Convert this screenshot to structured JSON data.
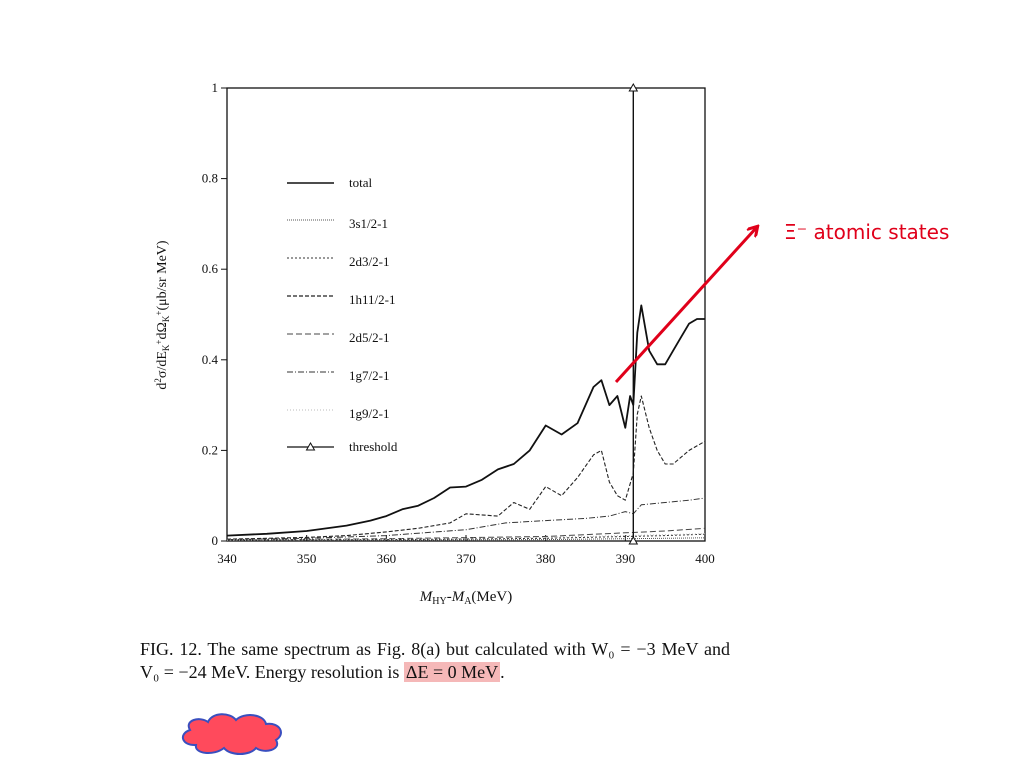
{
  "chart_data": {
    "type": "line",
    "xlabel": "M_HY-M_A(MeV)",
    "ylabel": "d²σ/dE_K+dΩ_K+(μb/sr MeV)",
    "xlim": [
      340,
      400
    ],
    "ylim": [
      0,
      1
    ],
    "x_ticks": [
      "340",
      "350",
      "360",
      "370",
      "380",
      "390",
      "400"
    ],
    "y_ticks": [
      "0",
      "0.2",
      "0.4",
      "0.6",
      "0.8",
      "1"
    ],
    "grid": false,
    "legend_position": "top-left",
    "series": [
      {
        "name": "total",
        "style": "solid",
        "x": [
          340,
          345,
          350,
          355,
          358,
          360,
          362,
          364,
          366,
          368,
          370,
          372,
          374,
          376,
          378,
          380,
          382,
          384,
          386,
          387,
          388,
          389,
          390,
          390.6,
          391,
          391.5,
          392,
          393,
          394,
          395,
          396,
          397,
          398,
          399,
          400
        ],
        "y": [
          0.012,
          0.016,
          0.022,
          0.034,
          0.045,
          0.055,
          0.07,
          0.078,
          0.095,
          0.118,
          0.12,
          0.135,
          0.158,
          0.17,
          0.2,
          0.255,
          0.235,
          0.26,
          0.34,
          0.355,
          0.3,
          0.32,
          0.25,
          0.32,
          0.3,
          0.46,
          0.52,
          0.42,
          0.39,
          0.39,
          0.42,
          0.45,
          0.48,
          0.49,
          0.49
        ]
      },
      {
        "name": "3s1/2-1",
        "style": "dotted",
        "x": [
          340,
          360,
          380,
          390,
          395,
          400
        ],
        "y": [
          0.001,
          0.002,
          0.003,
          0.005,
          0.006,
          0.007
        ]
      },
      {
        "name": "2d3/2-1",
        "style": "dotted-fine",
        "x": [
          340,
          360,
          380,
          390,
          395,
          400
        ],
        "y": [
          0.002,
          0.003,
          0.006,
          0.01,
          0.012,
          0.015
        ]
      },
      {
        "name": "1h11/2-1",
        "style": "dashed",
        "x": [
          340,
          345,
          350,
          355,
          360,
          364,
          368,
          370,
          374,
          376,
          378,
          380,
          382,
          384,
          386,
          387,
          388,
          389,
          390,
          391,
          391.5,
          392,
          393,
          394,
          395,
          396,
          398,
          400
        ],
        "y": [
          0.004,
          0.006,
          0.008,
          0.012,
          0.02,
          0.028,
          0.04,
          0.06,
          0.055,
          0.085,
          0.07,
          0.12,
          0.1,
          0.14,
          0.19,
          0.2,
          0.13,
          0.1,
          0.09,
          0.15,
          0.28,
          0.32,
          0.25,
          0.2,
          0.17,
          0.17,
          0.2,
          0.22
        ]
      },
      {
        "name": "2d5/2-1",
        "style": "long-dashed",
        "x": [
          340,
          360,
          380,
          390,
          395,
          400
        ],
        "y": [
          0.002,
          0.005,
          0.01,
          0.018,
          0.022,
          0.028
        ]
      },
      {
        "name": "1g7/2-1",
        "style": "dash-dot",
        "x": [
          340,
          350,
          360,
          370,
          375,
          380,
          385,
          388,
          390,
          391,
          392,
          395,
          398,
          400
        ],
        "y": [
          0.003,
          0.006,
          0.012,
          0.025,
          0.04,
          0.045,
          0.05,
          0.055,
          0.065,
          0.06,
          0.08,
          0.085,
          0.09,
          0.095
        ]
      },
      {
        "name": "1g9/2-1",
        "style": "dotted-light",
        "x": [
          340,
          360,
          380,
          390,
          395,
          400
        ],
        "y": [
          0.002,
          0.004,
          0.008,
          0.012,
          0.014,
          0.016
        ]
      },
      {
        "name": "threshold",
        "style": "solid-marker",
        "x": [
          391,
          391
        ],
        "y": [
          0,
          1
        ]
      }
    ]
  },
  "legend": {
    "total": "total",
    "s3": "3s1/2-1",
    "d23": "2d3/2-1",
    "h11": "1h11/2-1",
    "d25": "2d5/2-1",
    "g7": "1g7/2-1",
    "g9": "1g9/2-1",
    "threshold": "threshold"
  },
  "caption": {
    "label": "FIG. 12.",
    "text_1": "The same spectrum as Fig. 8(a) but calculated with W₀ = −3 MeV and V₀ = −24 MeV. Energy resolution is",
    "highlight": "ΔE = 0 MeV",
    "tail": "."
  },
  "annotation": {
    "text": "Ξ⁻ atomic states",
    "color": "#e0001a"
  },
  "colors": {
    "arrow": "#e0001a",
    "highlight": "#f5b8b8",
    "cloud_fill": "#ff4a5c",
    "cloud_stroke": "#3a4fbf"
  }
}
